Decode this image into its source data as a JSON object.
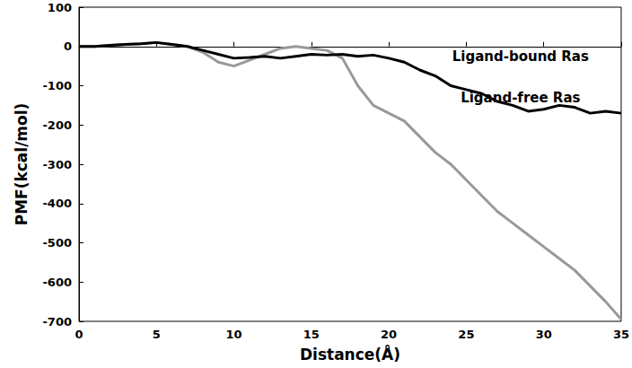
{
  "chart_data": {
    "type": "line",
    "x_label": "Distance(Å)",
    "y_label": "PMF(kcal/mol)",
    "xlim": [
      0,
      35
    ],
    "xticks": [
      0,
      5,
      10,
      15,
      20,
      25,
      30,
      35
    ],
    "ylim": [
      -700,
      100
    ],
    "yticks": [
      -700,
      -600,
      -500,
      -400,
      -300,
      -200,
      -100,
      0,
      100
    ],
    "grid": false,
    "series": [
      {
        "name": "Ligand-bound Ras",
        "color": "#000000",
        "x": [
          0,
          1,
          2,
          3,
          4,
          5,
          6,
          7,
          8,
          9,
          10,
          11,
          12,
          13,
          14,
          15,
          16,
          17,
          18,
          19,
          20,
          21,
          22,
          23,
          24,
          25,
          26,
          27,
          28,
          29,
          30,
          31,
          32,
          33,
          34,
          35
        ],
        "values": [
          0,
          0,
          3,
          5,
          7,
          10,
          5,
          0,
          -10,
          -20,
          -30,
          -28,
          -25,
          -30,
          -25,
          -20,
          -22,
          -20,
          -25,
          -22,
          -30,
          -40,
          -60,
          -75,
          -100,
          -110,
          -120,
          -140,
          -150,
          -165,
          -160,
          -150,
          -155,
          -170,
          -165,
          -170
        ]
      },
      {
        "name": "Ligand-free Ras",
        "color": "#999999",
        "x": [
          0,
          1,
          2,
          3,
          4,
          5,
          6,
          7,
          8,
          9,
          10,
          11,
          12,
          13,
          14,
          15,
          16,
          17,
          18,
          19,
          20,
          21,
          22,
          23,
          24,
          25,
          26,
          27,
          28,
          29,
          30,
          31,
          32,
          33,
          34,
          35
        ],
        "values": [
          0,
          0,
          3,
          5,
          7,
          10,
          5,
          0,
          -15,
          -40,
          -50,
          -35,
          -20,
          -5,
          0,
          -5,
          -10,
          -30,
          -100,
          -150,
          -170,
          -190,
          -230,
          -270,
          -300,
          -340,
          -380,
          -420,
          -450,
          -480,
          -510,
          -540,
          -570,
          -610,
          -650,
          -695
        ]
      }
    ],
    "annotations": [
      {
        "text": "Ligand-bound Ras",
        "x": 28.5,
        "y": -25
      },
      {
        "text": "Ligand-free Ras",
        "x": 28.5,
        "y": -130
      }
    ]
  }
}
